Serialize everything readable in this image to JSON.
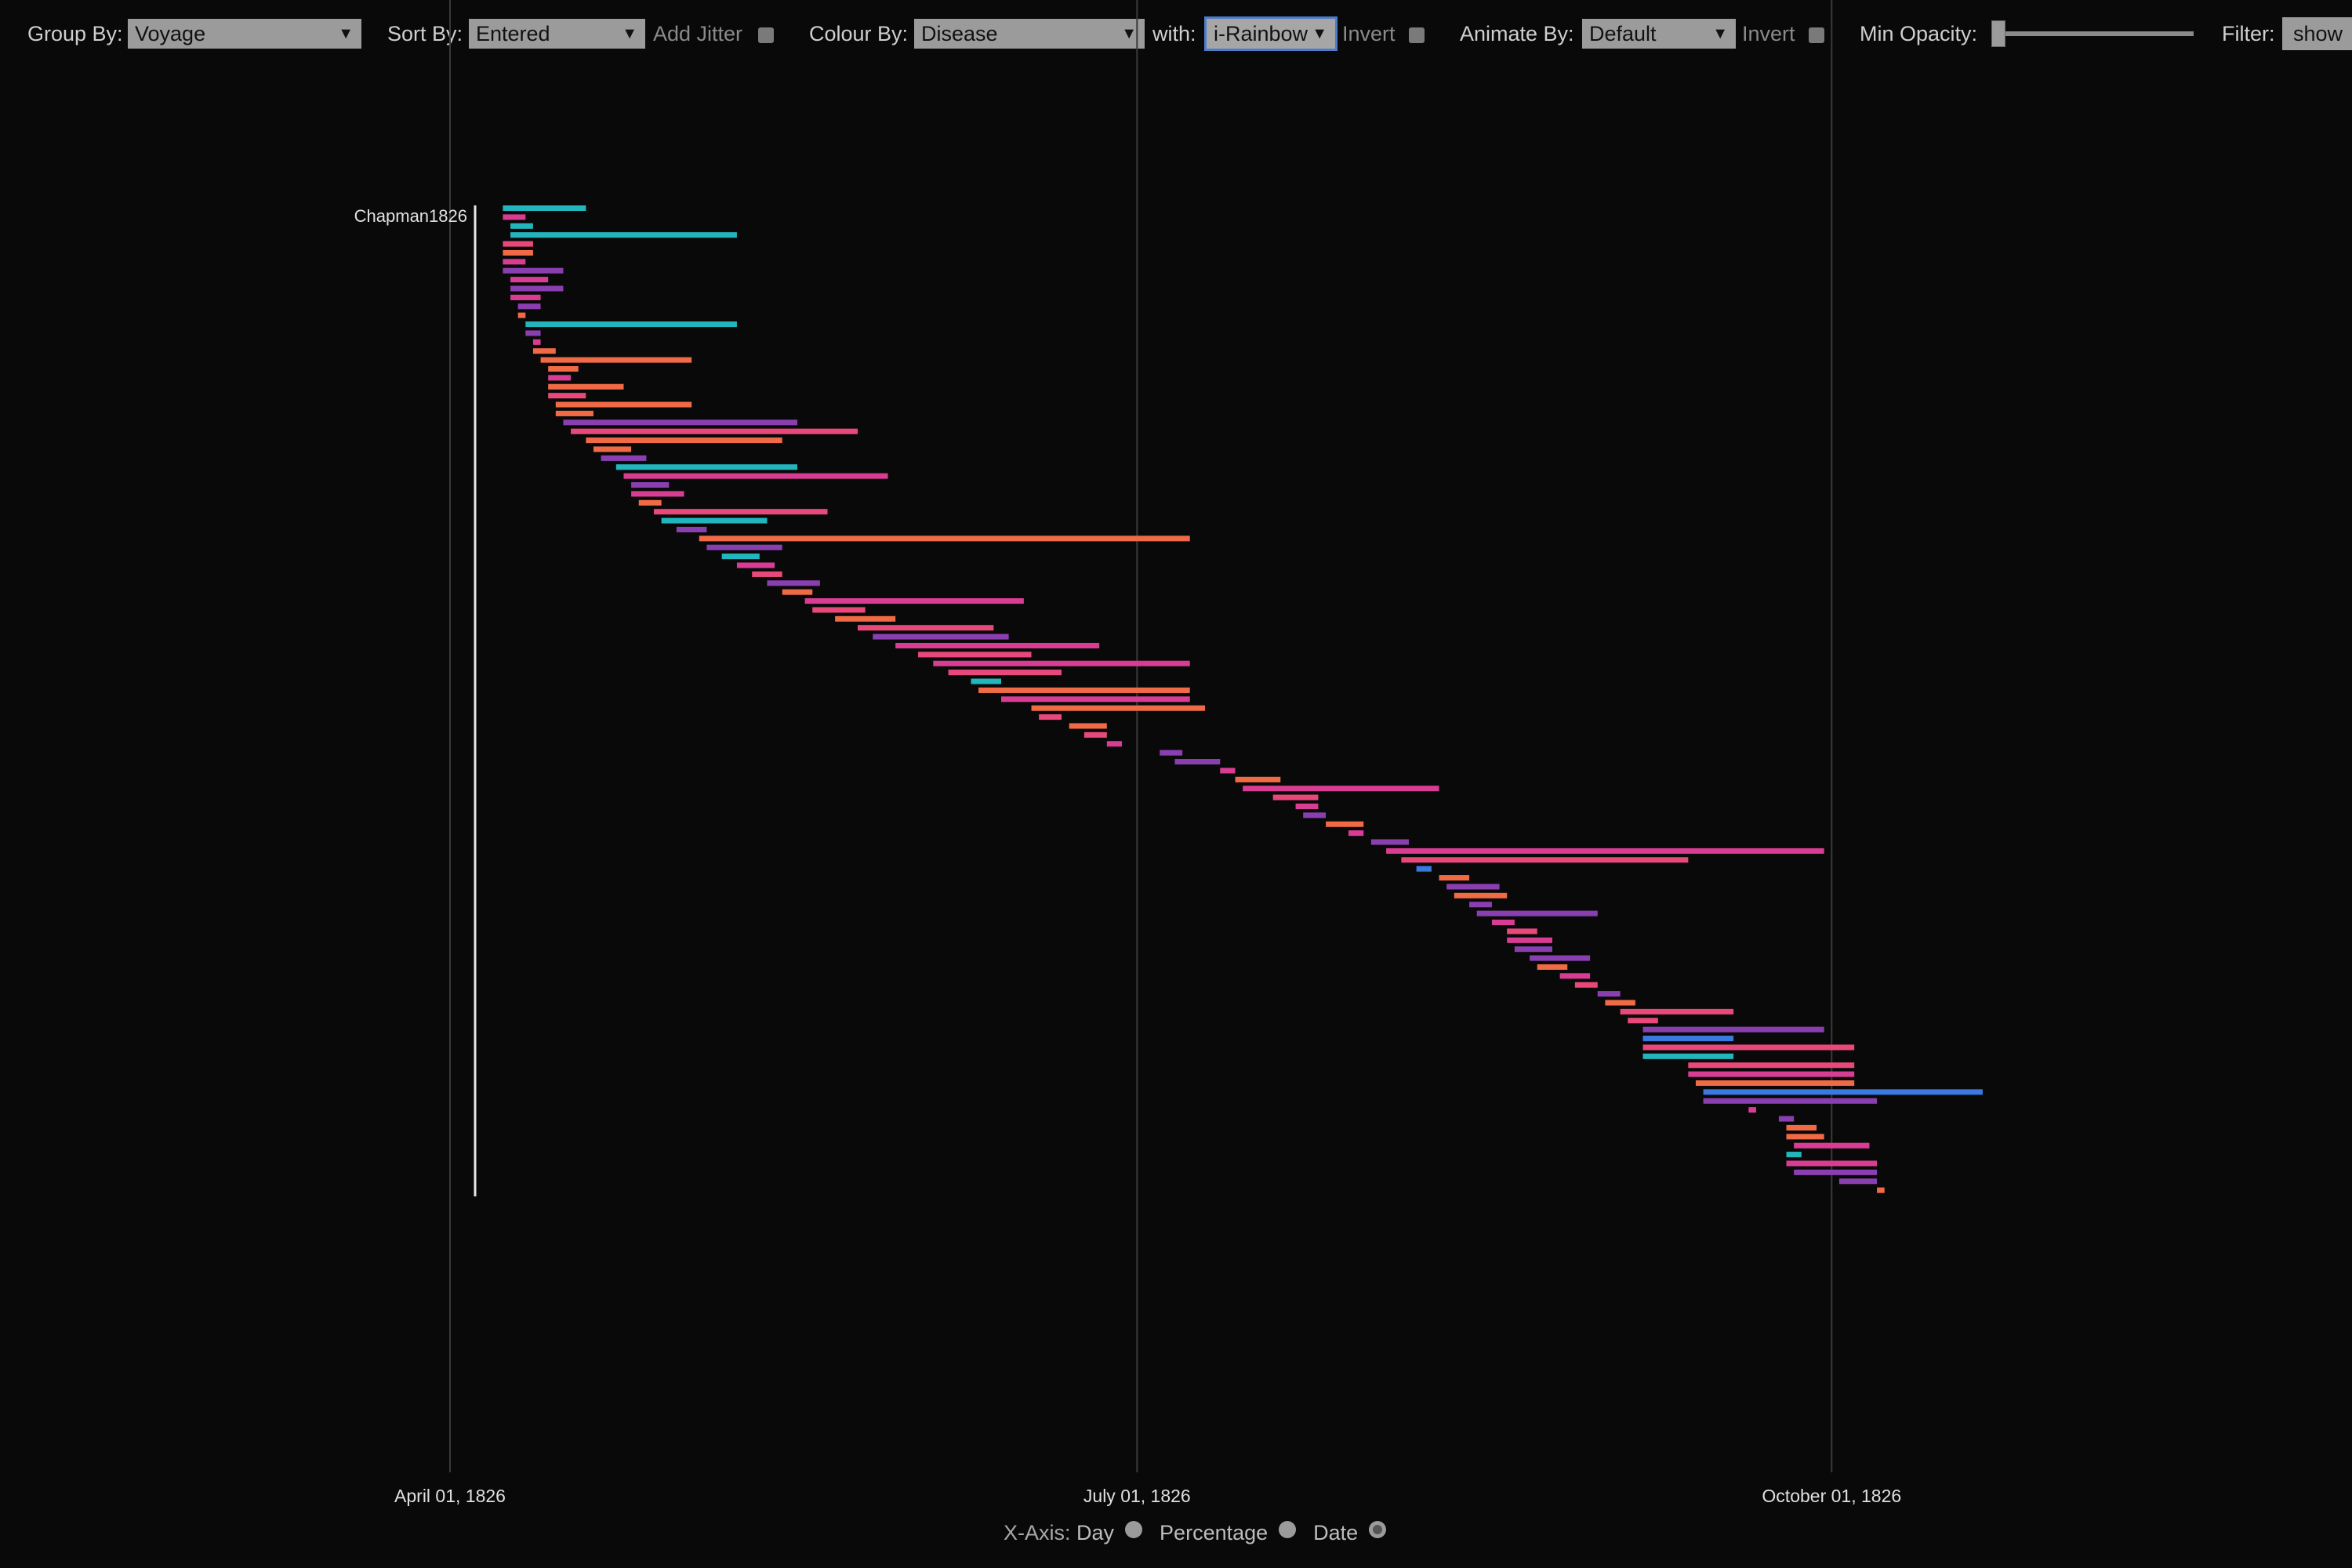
{
  "toolbar": {
    "group_by": {
      "label": "Group By:",
      "value": "Voyage"
    },
    "sort_by": {
      "label": "Sort By:",
      "value": "Entered"
    },
    "jitter": {
      "label": "Add Jitter"
    },
    "colour_by": {
      "label": "Colour By:",
      "value": "Disease"
    },
    "with": {
      "label": "with:",
      "value": "i-Rainbow"
    },
    "invert1": {
      "label": "Invert"
    },
    "animate_by": {
      "label": "Animate By:",
      "value": "Default"
    },
    "invert2": {
      "label": "Invert"
    },
    "min_opacity": {
      "label": "Min Opacity:",
      "value": 0
    },
    "filter": {
      "label": "Filter:",
      "value": "show"
    }
  },
  "xaxis_controls": {
    "label": "X-Axis:",
    "options": [
      "Day",
      "Percentage",
      "Date"
    ],
    "selected": "Date"
  },
  "chart_data": {
    "type": "timeline",
    "x_axis": {
      "type": "date",
      "range": [
        "1826-04-01",
        "1826-10-21"
      ],
      "ticks": [
        "April 01, 1826",
        "July 01, 1826",
        "October 01, 1826"
      ]
    },
    "group_label": "Chapman1826",
    "palette": {
      "cyan": "#22b5bd",
      "purple": "#8a3fb0",
      "magenta": "#d93d93",
      "orange": "#ef6a45",
      "pink": "#e8497a",
      "blue": "#3a7ae0"
    },
    "row_count": 111,
    "rows": [
      [
        "1826-04-08",
        "1826-04-19",
        "cyan"
      ],
      [
        "1826-04-08",
        "1826-04-11",
        "magenta"
      ],
      [
        "1826-04-09",
        "1826-04-12",
        "cyan"
      ],
      [
        "1826-04-09",
        "1826-05-09",
        "cyan"
      ],
      [
        "1826-04-08",
        "1826-04-12",
        "pink"
      ],
      [
        "1826-04-08",
        "1826-04-12",
        "orange"
      ],
      [
        "1826-04-08",
        "1826-04-11",
        "magenta"
      ],
      [
        "1826-04-08",
        "1826-04-16",
        "purple"
      ],
      [
        "1826-04-09",
        "1826-04-14",
        "magenta"
      ],
      [
        "1826-04-09",
        "1826-04-16",
        "purple"
      ],
      [
        "1826-04-09",
        "1826-04-13",
        "magenta"
      ],
      [
        "1826-04-10",
        "1826-04-13",
        "purple"
      ],
      [
        "1826-04-10",
        "1826-04-11",
        "orange"
      ],
      [
        "1826-04-11",
        "1826-05-09",
        "cyan"
      ],
      [
        "1826-04-11",
        "1826-04-13",
        "purple"
      ],
      [
        "1826-04-12",
        "1826-04-13",
        "magenta"
      ],
      [
        "1826-04-12",
        "1826-04-15",
        "orange"
      ],
      [
        "1826-04-13",
        "1826-05-03",
        "orange"
      ],
      [
        "1826-04-14",
        "1826-04-18",
        "orange"
      ],
      [
        "1826-04-14",
        "1826-04-17",
        "magenta"
      ],
      [
        "1826-04-14",
        "1826-04-24",
        "orange"
      ],
      [
        "1826-04-14",
        "1826-04-19",
        "pink"
      ],
      [
        "1826-04-15",
        "1826-05-03",
        "orange"
      ],
      [
        "1826-04-15",
        "1826-04-20",
        "orange"
      ],
      [
        "1826-04-16",
        "1826-05-17",
        "purple"
      ],
      [
        "1826-04-17",
        "1826-05-25",
        "pink"
      ],
      [
        "1826-04-19",
        "1826-05-15",
        "orange"
      ],
      [
        "1826-04-20",
        "1826-04-25",
        "orange"
      ],
      [
        "1826-04-21",
        "1826-04-27",
        "purple"
      ],
      [
        "1826-04-23",
        "1826-05-17",
        "cyan"
      ],
      [
        "1826-04-24",
        "1826-05-29",
        "magenta"
      ],
      [
        "1826-04-25",
        "1826-04-30",
        "purple"
      ],
      [
        "1826-04-25",
        "1826-05-02",
        "magenta"
      ],
      [
        "1826-04-26",
        "1826-04-29",
        "orange"
      ],
      [
        "1826-04-28",
        "1826-05-21",
        "pink"
      ],
      [
        "1826-04-29",
        "1826-05-13",
        "cyan"
      ],
      [
        "1826-05-01",
        "1826-05-05",
        "purple"
      ],
      [
        "1826-05-04",
        "1826-07-08",
        "orange"
      ],
      [
        "1826-05-05",
        "1826-05-15",
        "purple"
      ],
      [
        "1826-05-07",
        "1826-05-12",
        "cyan"
      ],
      [
        "1826-05-09",
        "1826-05-14",
        "magenta"
      ],
      [
        "1826-05-11",
        "1826-05-15",
        "pink"
      ],
      [
        "1826-05-13",
        "1826-05-20",
        "purple"
      ],
      [
        "1826-05-15",
        "1826-05-19",
        "orange"
      ],
      [
        "1826-05-18",
        "1826-06-16",
        "magenta"
      ],
      [
        "1826-05-19",
        "1826-05-26",
        "pink"
      ],
      [
        "1826-05-22",
        "1826-05-30",
        "orange"
      ],
      [
        "1826-05-25",
        "1826-06-12",
        "pink"
      ],
      [
        "1826-05-27",
        "1826-06-14",
        "purple"
      ],
      [
        "1826-05-30",
        "1826-06-26",
        "magenta"
      ],
      [
        "1826-06-02",
        "1826-06-17",
        "pink"
      ],
      [
        "1826-06-04",
        "1826-07-08",
        "magenta"
      ],
      [
        "1826-06-06",
        "1826-06-21",
        "pink"
      ],
      [
        "1826-06-09",
        "1826-06-13",
        "cyan"
      ],
      [
        "1826-06-10",
        "1826-07-08",
        "orange"
      ],
      [
        "1826-06-13",
        "1826-07-08",
        "magenta"
      ],
      [
        "1826-06-17",
        "1826-07-10",
        "orange"
      ],
      [
        "1826-06-18",
        "1826-06-21",
        "pink"
      ],
      [
        "1826-06-22",
        "1826-06-27",
        "orange"
      ],
      [
        "1826-06-24",
        "1826-06-27",
        "pink"
      ],
      [
        "1826-06-27",
        "1826-06-29",
        "magenta"
      ],
      [
        "1826-07-04",
        "1826-07-07",
        "purple"
      ],
      [
        "1826-07-06",
        "1826-07-12",
        "purple"
      ],
      [
        "1826-07-12",
        "1826-07-14",
        "magenta"
      ],
      [
        "1826-07-14",
        "1826-07-20",
        "orange"
      ],
      [
        "1826-07-15",
        "1826-08-10",
        "magenta"
      ],
      [
        "1826-07-19",
        "1826-07-25",
        "pink"
      ],
      [
        "1826-07-22",
        "1826-07-25",
        "magenta"
      ],
      [
        "1826-07-23",
        "1826-07-26",
        "purple"
      ],
      [
        "1826-07-26",
        "1826-07-31",
        "orange"
      ],
      [
        "1826-07-29",
        "1826-07-31",
        "magenta"
      ],
      [
        "1826-08-01",
        "1826-08-06",
        "purple"
      ],
      [
        "1826-08-03",
        "1826-09-30",
        "magenta"
      ],
      [
        "1826-08-05",
        "1826-09-12",
        "pink"
      ],
      [
        "1826-08-07",
        "1826-08-09",
        "blue"
      ],
      [
        "1826-08-10",
        "1826-08-14",
        "orange"
      ],
      [
        "1826-08-11",
        "1826-08-18",
        "purple"
      ],
      [
        "1826-08-12",
        "1826-08-19",
        "orange"
      ],
      [
        "1826-08-14",
        "1826-08-17",
        "purple"
      ],
      [
        "1826-08-15",
        "1826-08-31",
        "purple"
      ],
      [
        "1826-08-17",
        "1826-08-20",
        "magenta"
      ],
      [
        "1826-08-19",
        "1826-08-23",
        "pink"
      ],
      [
        "1826-08-19",
        "1826-08-25",
        "magenta"
      ],
      [
        "1826-08-20",
        "1826-08-25",
        "purple"
      ],
      [
        "1826-08-22",
        "1826-08-30",
        "purple"
      ],
      [
        "1826-08-23",
        "1826-08-27",
        "orange"
      ],
      [
        "1826-08-26",
        "1826-08-30",
        "magenta"
      ],
      [
        "1826-08-28",
        "1826-08-31",
        "pink"
      ],
      [
        "1826-08-31",
        "1826-09-03",
        "purple"
      ],
      [
        "1826-09-01",
        "1826-09-05",
        "orange"
      ],
      [
        "1826-09-03",
        "1826-09-18",
        "pink"
      ],
      [
        "1826-09-04",
        "1826-09-08",
        "pink"
      ],
      [
        "1826-09-06",
        "1826-09-30",
        "purple"
      ],
      [
        "1826-09-06",
        "1826-09-18",
        "blue"
      ],
      [
        "1826-09-06",
        "1826-10-04",
        "pink"
      ],
      [
        "1826-09-06",
        "1826-09-18",
        "cyan"
      ],
      [
        "1826-09-12",
        "1826-10-04",
        "pink"
      ],
      [
        "1826-09-12",
        "1826-10-04",
        "magenta"
      ],
      [
        "1826-09-13",
        "1826-10-04",
        "orange"
      ],
      [
        "1826-09-14",
        "1826-10-21",
        "blue"
      ],
      [
        "1826-09-14",
        "1826-10-07",
        "purple"
      ],
      [
        "1826-09-20",
        "1826-09-21",
        "magenta"
      ],
      [
        "1826-09-24",
        "1826-09-26",
        "purple"
      ],
      [
        "1826-09-25",
        "1826-09-29",
        "orange"
      ],
      [
        "1826-09-25",
        "1826-09-30",
        "orange"
      ],
      [
        "1826-09-26",
        "1826-10-06",
        "magenta"
      ],
      [
        "1826-09-25",
        "1826-09-27",
        "cyan"
      ],
      [
        "1826-09-25",
        "1826-10-07",
        "magenta"
      ],
      [
        "1826-09-26",
        "1826-10-07",
        "purple"
      ],
      [
        "1826-10-02",
        "1826-10-07",
        "purple"
      ],
      [
        "1826-10-07",
        "1826-10-08",
        "orange"
      ]
    ]
  }
}
